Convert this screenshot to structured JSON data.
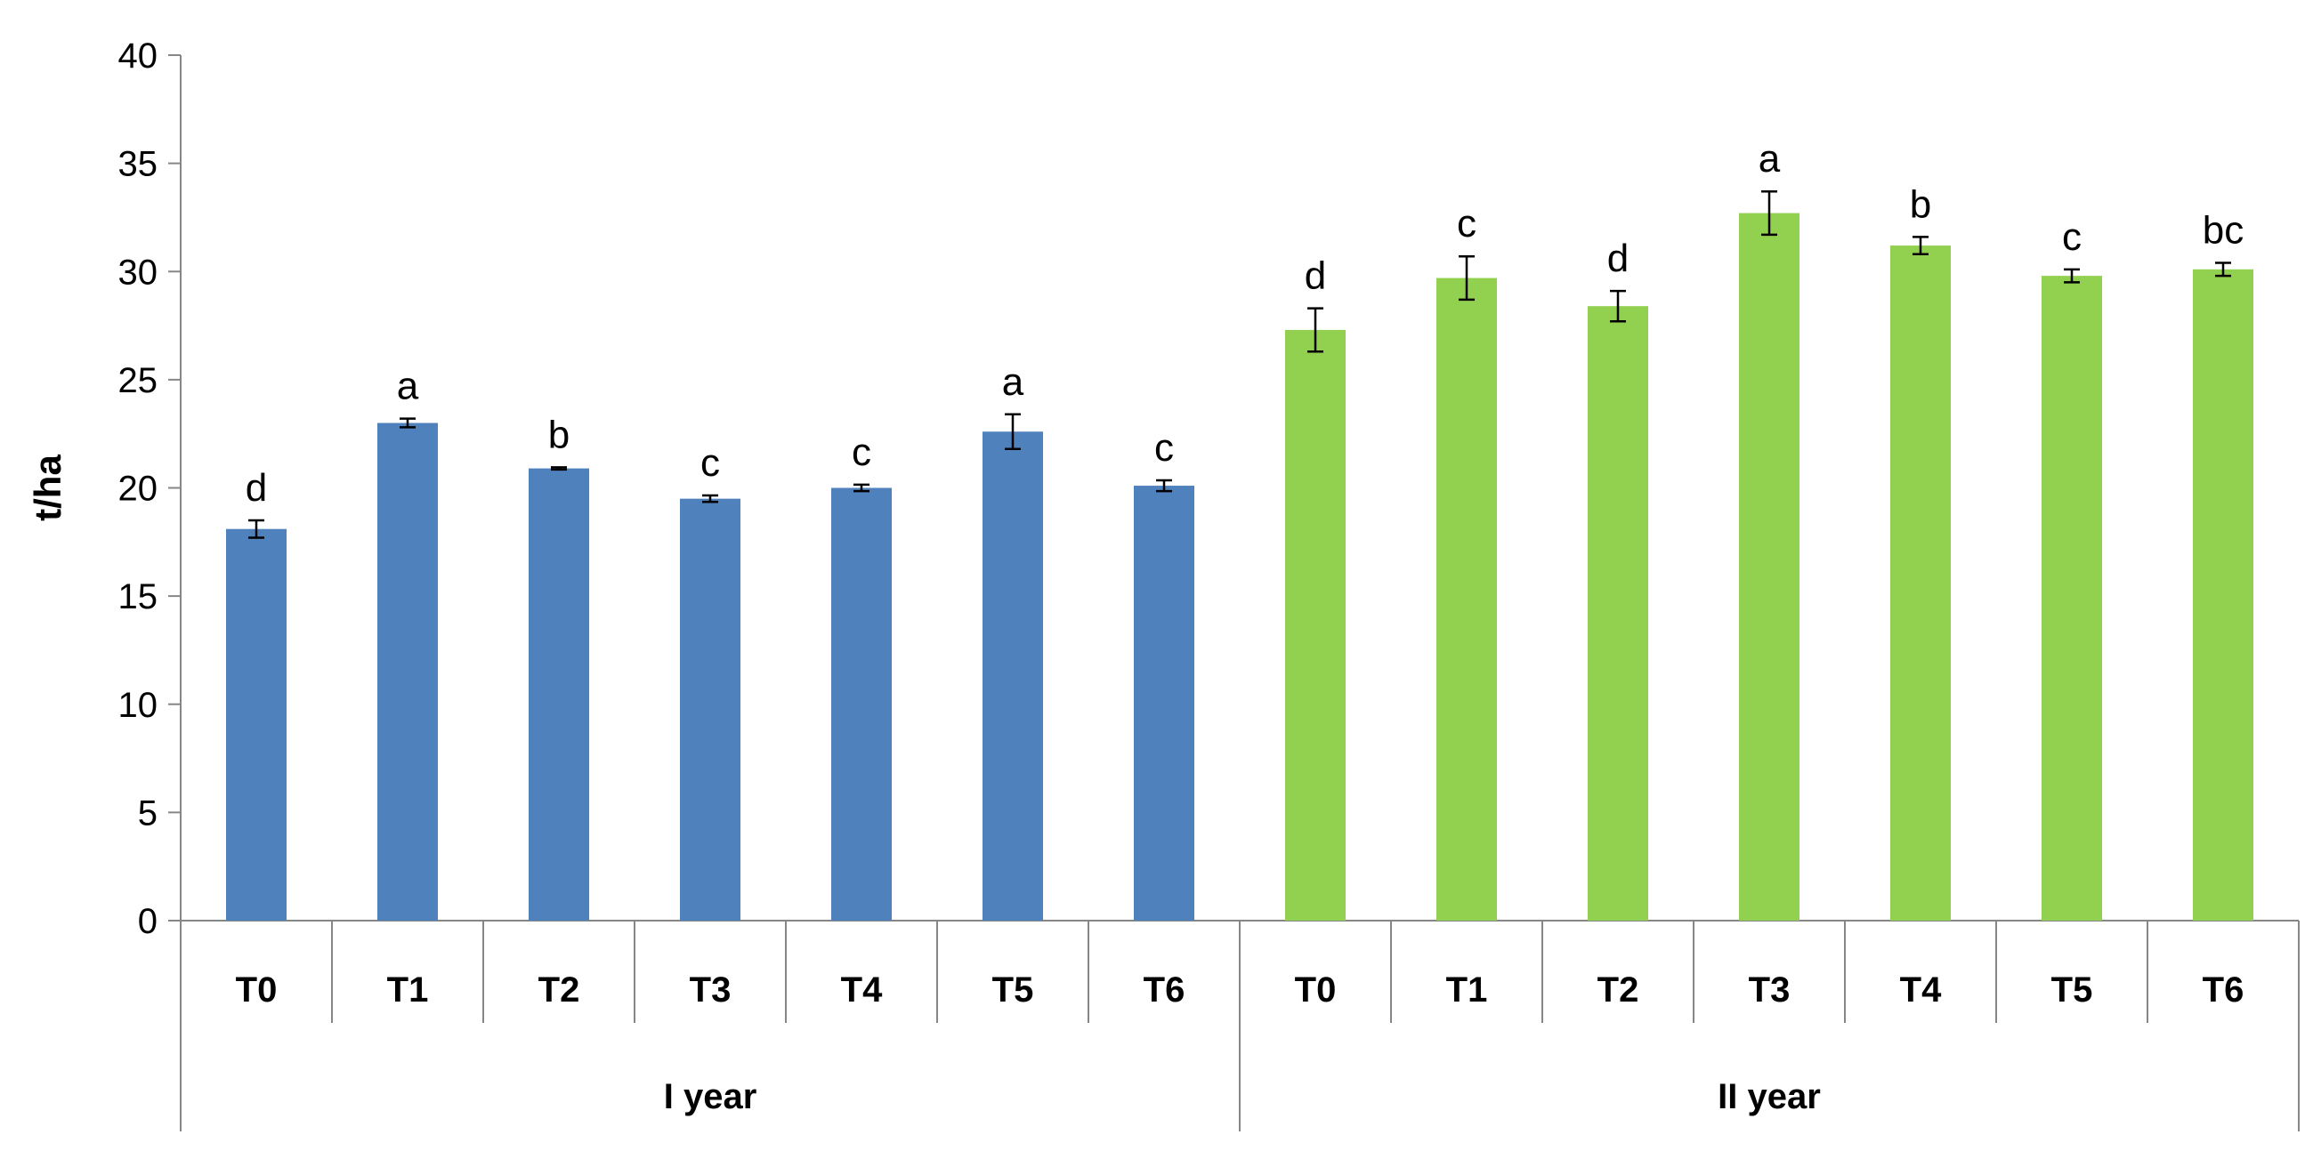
{
  "chart_data": {
    "type": "bar",
    "title": "",
    "xlabel": "",
    "ylabel": "t/ha",
    "ylim": [
      0,
      40
    ],
    "yticks": [
      0,
      5,
      10,
      15,
      20,
      25,
      30,
      35,
      40
    ],
    "grid": false,
    "legend": "none",
    "groups": [
      {
        "label": "I year",
        "color": "#4f81bd",
        "categories": [
          "T0",
          "T1",
          "T2",
          "T3",
          "T4",
          "T5",
          "T6"
        ],
        "values": [
          18.1,
          23.0,
          20.9,
          19.5,
          20.0,
          22.6,
          20.1
        ],
        "errors": [
          0.4,
          0.2,
          0.05,
          0.15,
          0.15,
          0.8,
          0.25
        ],
        "letters": [
          "d",
          "a",
          "b",
          "c",
          "c",
          "a",
          "c"
        ]
      },
      {
        "label": "II year",
        "color": "#92d050",
        "categories": [
          "T0",
          "T1",
          "T2",
          "T3",
          "T4",
          "T5",
          "T6"
        ],
        "values": [
          27.3,
          29.7,
          28.4,
          32.7,
          31.2,
          29.8,
          30.1
        ],
        "errors": [
          1.0,
          1.0,
          0.7,
          1.0,
          0.4,
          0.3,
          0.3
        ],
        "letters": [
          "d",
          "c",
          "d",
          "a",
          "b",
          "c",
          "bc"
        ]
      }
    ]
  }
}
